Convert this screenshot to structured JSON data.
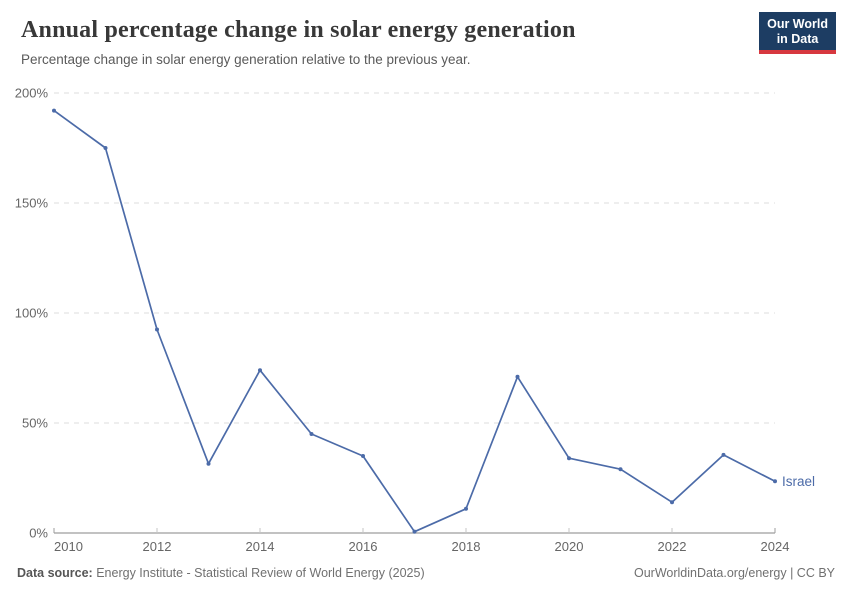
{
  "header": {
    "title": "Annual percentage change in solar energy generation",
    "subtitle": "Percentage change in solar energy generation relative to the previous year.",
    "logo": {
      "line1": "Our World",
      "line2": "in Data",
      "bg_color": "#1d3d63",
      "bar_color": "#d7383f"
    }
  },
  "chart_data": {
    "type": "line",
    "title": "Annual percentage change in solar energy generation",
    "x": [
      2010,
      2011,
      2012,
      2013,
      2014,
      2015,
      2016,
      2017,
      2018,
      2019,
      2020,
      2021,
      2022,
      2023,
      2024
    ],
    "series": [
      {
        "name": "Israel",
        "color": "#4c6ba8",
        "values": [
          192,
          175,
          92.5,
          31.5,
          74,
          45,
          35,
          0.6,
          11,
          71,
          34,
          29,
          14,
          35.5,
          23.5
        ]
      }
    ],
    "ylim": [
      0,
      200
    ],
    "y_ticks": [
      0,
      50,
      100,
      150,
      200
    ],
    "y_tick_labels": [
      "0%",
      "50%",
      "100%",
      "150%",
      "200%"
    ],
    "x_ticks": [
      2010,
      2012,
      2014,
      2016,
      2018,
      2020,
      2022,
      2024
    ],
    "x_tick_labels": [
      "2010",
      "2012",
      "2014",
      "2016",
      "2018",
      "2020",
      "2022",
      "2024"
    ],
    "grid": "horizontal-dashed",
    "legend": "end-of-line-label",
    "end_label": "Israel",
    "grid_color": "#dcdcdc",
    "axis_color": "#9e9e9e",
    "tick_label_color": "#666666"
  },
  "footer": {
    "source_label": "Data source:",
    "source_text": "Energy Institute - Statistical Review of World Energy (2025)",
    "credit": "OurWorldinData.org/energy | CC BY"
  }
}
